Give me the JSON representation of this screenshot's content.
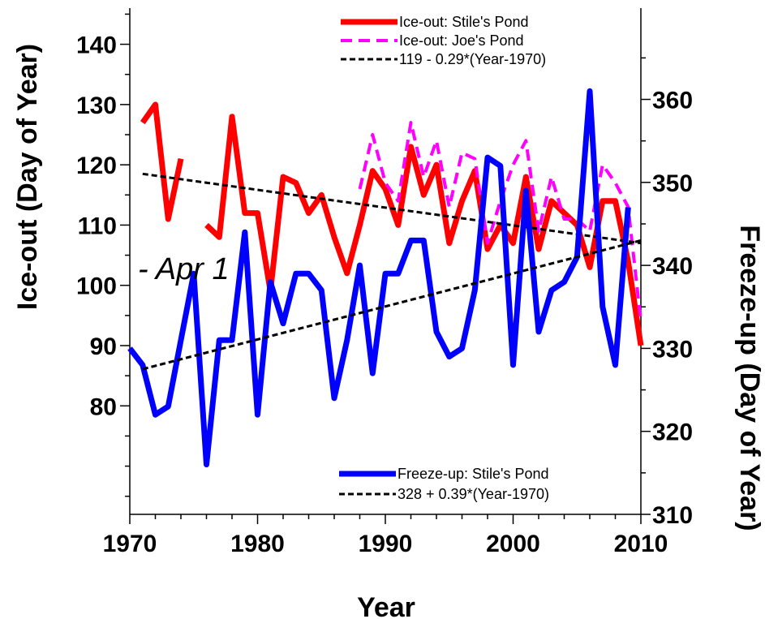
{
  "chart_data": {
    "type": "line",
    "xlabel": "Year",
    "ylabel": "Ice-out (Day of Year)",
    "y2label": "Freeze-up (Day of Year)",
    "xlim": [
      1970,
      2010
    ],
    "ylim": [
      62,
      146
    ],
    "y2lim": [
      310,
      371
    ],
    "xticks": [
      1970,
      1980,
      1990,
      2000,
      2010
    ],
    "yticks": [
      80,
      90,
      100,
      110,
      120,
      130,
      140
    ],
    "y2ticks": [
      310,
      320,
      330,
      340,
      350,
      360
    ],
    "annotation": "- Apr 1",
    "legend_top": "top-right",
    "legend_bottom": "bottom-right",
    "series": [
      {
        "name": "Ice-out: Stile's Pond",
        "axis": "left",
        "color": "#ff0000",
        "style": "solid",
        "x": [
          1971,
          1972,
          1973,
          1974,
          null,
          1976,
          1977,
          1978,
          1979,
          1980,
          1981,
          1982,
          1983,
          1984,
          1985,
          1986,
          1987,
          1988,
          1989,
          1990,
          1991,
          1992,
          1993,
          1994,
          1995,
          1996,
          1997,
          1998,
          1999,
          2000,
          2001,
          2002,
          2003,
          2004,
          2005,
          2006,
          2007,
          2008,
          2009,
          2010
        ],
        "y": [
          127,
          130,
          111,
          121,
          null,
          110,
          108,
          128,
          112,
          112,
          99,
          118,
          117,
          112,
          115,
          108,
          102,
          110,
          119,
          116,
          110,
          123,
          115,
          120,
          107,
          114,
          119,
          106,
          110,
          107,
          118,
          106,
          114,
          112,
          110,
          103,
          114,
          114,
          104,
          90
        ]
      },
      {
        "name": "Ice-out: Joe's Pond",
        "axis": "left",
        "color": "#ff00ff",
        "style": "dashed",
        "x": [
          1988,
          1989,
          1990,
          1991,
          1992,
          1993,
          1994,
          1995,
          1996,
          1997,
          1998,
          1999,
          2000,
          2001,
          2002,
          2003,
          2004,
          2005,
          2006,
          2007,
          2008,
          2009,
          2010
        ],
        "y": [
          116,
          125,
          117,
          114,
          127,
          118,
          124,
          113,
          122,
          121,
          107,
          114,
          120,
          124,
          109,
          118,
          111,
          111,
          109,
          120,
          117,
          113,
          94
        ]
      },
      {
        "name": "119 - 0.29*(Year-1970)",
        "axis": "left",
        "color": "#000000",
        "style": "dashed",
        "x": [
          1971,
          2010
        ],
        "y": [
          118.5,
          107
        ]
      },
      {
        "name": "Freeze-up: Stile's Pond",
        "axis": "right",
        "color": "#0000ff",
        "style": "solid",
        "x": [
          1970,
          1971,
          1972,
          1973,
          1974,
          1975,
          1976,
          1977,
          1978,
          1979,
          1980,
          1981,
          1982,
          1983,
          1984,
          1985,
          1986,
          1987,
          1988,
          1989,
          1990,
          1991,
          1992,
          1993,
          1994,
          1995,
          1996,
          1997,
          1998,
          1999,
          2000,
          2001,
          2002,
          2003,
          2004,
          2005,
          2006,
          2007,
          2008,
          2009
        ],
        "y": [
          330,
          328,
          322,
          323,
          331,
          339,
          316,
          331,
          331,
          344,
          322,
          338,
          333,
          339,
          339,
          337,
          324,
          331,
          340,
          327,
          339,
          339,
          343,
          343,
          332,
          329,
          330,
          337,
          353,
          352,
          328,
          349,
          332,
          337,
          338,
          341,
          361,
          335,
          328,
          347
        ]
      },
      {
        "name": "328 + 0.39*(Year-1970)",
        "axis": "right",
        "color": "#000000",
        "style": "dashed",
        "x": [
          1971,
          2010
        ],
        "y": [
          327.5,
          343
        ]
      }
    ]
  }
}
